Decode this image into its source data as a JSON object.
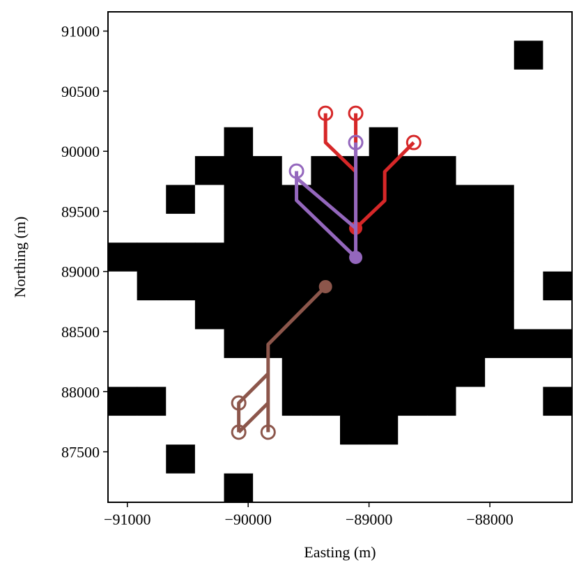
{
  "chart_data": {
    "type": "well-map",
    "x_label": "Easting (m)",
    "y_label": "Northing (m)",
    "xlim": [
      -91160,
      -87320
    ],
    "ylim": [
      87080,
      91160
    ],
    "xticks": [
      {
        "value": -91000,
        "label": "−91000"
      },
      {
        "value": -90000,
        "label": "−90000"
      },
      {
        "value": -89000,
        "label": "−89000"
      },
      {
        "value": -88000,
        "label": "−88000"
      }
    ],
    "yticks": [
      87500,
      88000,
      88500,
      89000,
      89500,
      90000,
      90500,
      91000
    ],
    "raster": {
      "cell_size": 240,
      "colors": [
        "#ffffff",
        "#000000"
      ],
      "rows": [
        [
          0,
          0,
          0,
          0,
          0,
          0,
          0,
          0,
          0,
          0,
          0,
          0,
          0,
          0,
          0,
          0
        ],
        [
          0,
          0,
          0,
          0,
          0,
          0,
          0,
          0,
          0,
          0,
          0,
          0,
          0,
          0,
          1,
          0
        ],
        [
          0,
          0,
          0,
          0,
          0,
          0,
          0,
          0,
          0,
          0,
          0,
          0,
          0,
          0,
          0,
          0
        ],
        [
          0,
          0,
          0,
          0,
          0,
          0,
          0,
          0,
          0,
          0,
          0,
          0,
          0,
          0,
          0,
          0
        ],
        [
          0,
          0,
          0,
          0,
          1,
          0,
          0,
          0,
          0,
          1,
          0,
          0,
          0,
          0,
          0,
          0
        ],
        [
          0,
          0,
          0,
          1,
          1,
          1,
          0,
          1,
          1,
          1,
          1,
          1,
          0,
          0,
          0,
          0
        ],
        [
          0,
          0,
          1,
          0,
          1,
          1,
          1,
          1,
          1,
          1,
          1,
          1,
          1,
          1,
          0,
          0
        ],
        [
          0,
          0,
          0,
          0,
          1,
          1,
          1,
          1,
          1,
          1,
          1,
          1,
          1,
          1,
          0,
          0
        ],
        [
          1,
          1,
          1,
          1,
          1,
          1,
          1,
          1,
          1,
          1,
          1,
          1,
          1,
          1,
          0,
          0
        ],
        [
          0,
          1,
          1,
          1,
          1,
          1,
          1,
          1,
          1,
          1,
          1,
          1,
          1,
          1,
          0,
          1
        ],
        [
          0,
          0,
          0,
          1,
          1,
          1,
          1,
          1,
          1,
          1,
          1,
          1,
          1,
          1,
          0,
          0
        ],
        [
          0,
          0,
          0,
          0,
          1,
          1,
          1,
          1,
          1,
          1,
          1,
          1,
          1,
          1,
          1,
          1
        ],
        [
          0,
          0,
          0,
          0,
          0,
          0,
          1,
          1,
          1,
          1,
          1,
          1,
          1,
          0,
          0,
          0
        ],
        [
          1,
          1,
          0,
          0,
          0,
          0,
          1,
          1,
          1,
          1,
          1,
          1,
          0,
          0,
          0,
          1
        ],
        [
          0,
          0,
          0,
          0,
          0,
          0,
          0,
          0,
          1,
          1,
          0,
          0,
          0,
          0,
          0,
          0
        ],
        [
          0,
          0,
          1,
          0,
          0,
          0,
          0,
          0,
          0,
          0,
          0,
          0,
          0,
          0,
          0,
          0
        ],
        [
          0,
          0,
          0,
          0,
          1,
          0,
          0,
          0,
          0,
          0,
          0,
          0,
          0,
          0,
          0,
          0
        ]
      ]
    },
    "wells": [
      {
        "color": "#d62728",
        "lines": [
          {
            "x": [
              -89360,
              -89360,
              -89110,
              -89110
            ],
            "y": [
              90316,
              90073,
              89830,
              89360
            ]
          },
          {
            "x": [
              -89110,
              -89110
            ],
            "y": [
              90316,
              89360
            ]
          },
          {
            "x": [
              -88630,
              -88870,
              -88870,
              -89110
            ],
            "y": [
              90073,
              89830,
              89590,
              89360
            ]
          }
        ],
        "starts": {
          "x": [
            -89360,
            -89110,
            -88630
          ],
          "y": [
            90316,
            90316,
            90073
          ]
        },
        "end": {
          "x": -89110,
          "y": 89360
        }
      },
      {
        "color": "#9467bd",
        "lines": [
          {
            "x": [
              -89600,
              -89600,
              -89110
            ],
            "y": [
              89835,
              89592,
              89117
            ]
          },
          {
            "x": [
              -89600,
              -89110
            ],
            "y": [
              89778,
              89360
            ]
          },
          {
            "x": [
              -89110,
              -89110
            ],
            "y": [
              90073,
              89117
            ]
          }
        ],
        "starts": {
          "x": [
            -89600,
            -89110
          ],
          "y": [
            89835,
            90073
          ]
        },
        "end": {
          "x": -89110,
          "y": 89117
        }
      },
      {
        "color": "#8c564b",
        "lines": [
          {
            "x": [
              -89360,
              -89835,
              -89835
            ],
            "y": [
              88874,
              88393,
              87663
            ]
          },
          {
            "x": [
              -89835,
              -90078,
              -90078
            ],
            "y": [
              88150,
              87906,
              87663
            ]
          },
          {
            "x": [
              -89835,
              -90078
            ],
            "y": [
              87906,
              87663
            ]
          }
        ],
        "starts": {
          "x": [
            -90078,
            -90078,
            -89835
          ],
          "y": [
            87906,
            87663,
            87663
          ]
        },
        "end": {
          "x": -89360,
          "y": 88874
        }
      }
    ]
  }
}
